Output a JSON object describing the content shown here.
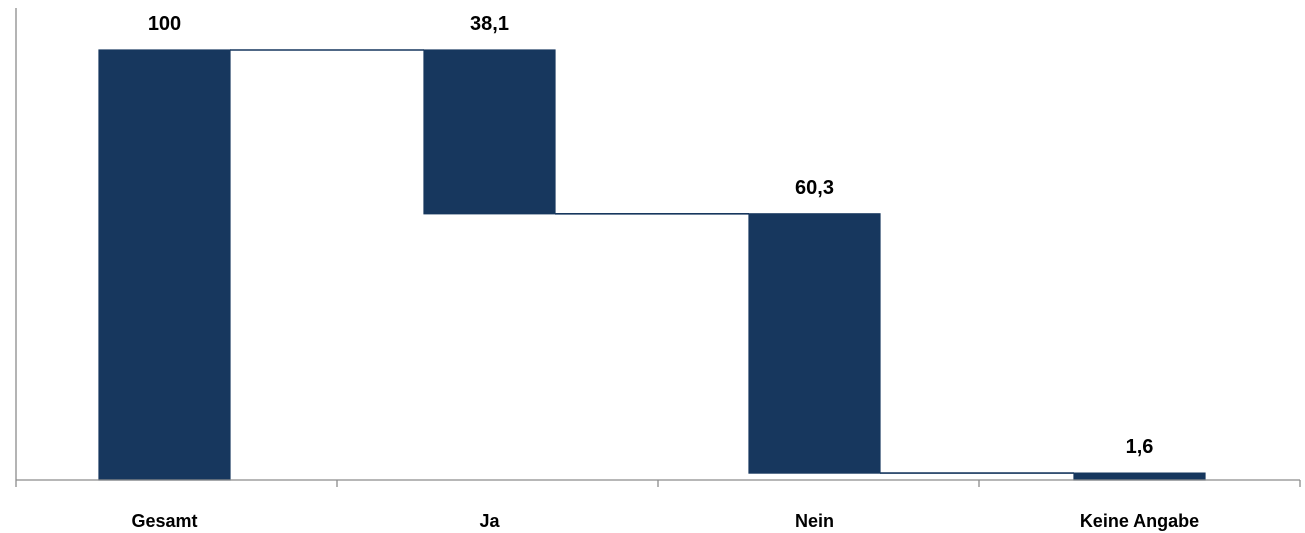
{
  "chart_data": {
    "type": "bar",
    "subtype": "waterfall",
    "title": "",
    "xlabel": "",
    "ylabel": "",
    "ylim": [
      0,
      100
    ],
    "categories": [
      "Gesamt",
      "Ja",
      "Nein",
      "Keine Angabe"
    ],
    "values": [
      100,
      38.1,
      60.3,
      1.6
    ],
    "value_labels": [
      "100",
      "38,1",
      "60,3",
      "1,6"
    ],
    "bar_color": "#17375e",
    "grid": false,
    "legend": "none"
  }
}
